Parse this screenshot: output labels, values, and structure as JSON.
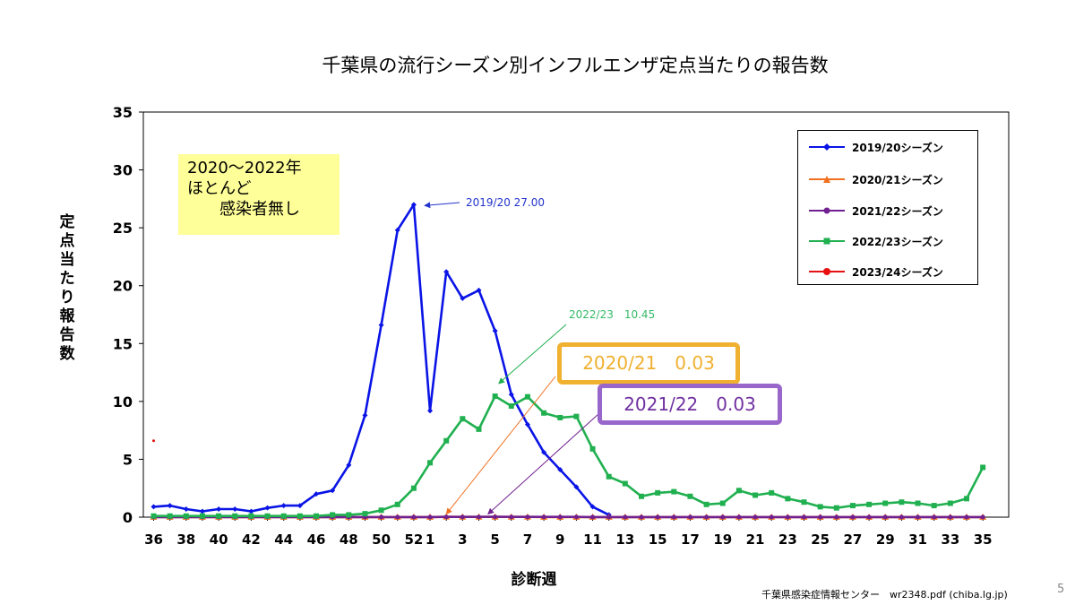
{
  "slide": {
    "source": "千葉県感染症情報センター　wr2348.pdf (chiba.lg.jp)",
    "page_number": "5"
  },
  "note": {
    "lines": [
      "2020〜2022年",
      "ほとんど",
      "　　感染者無し"
    ]
  },
  "callouts": {
    "peak_1920": "2019/20 27.00",
    "peak_2223": "2022/23　10.45",
    "box_2021": "2020/21　0.03",
    "box_2122": "2021/22　0.03"
  },
  "colors": {
    "s1920": "#0a14e6",
    "s2021": "#f07020",
    "s2122": "#702090",
    "s2223": "#20b050",
    "s2324": "#e81010"
  },
  "chart_data": {
    "type": "line",
    "title": "千葉県の流行シーズン別インフルエンザ定点当たりの報告数",
    "xlabel": "診断週",
    "ylabel": "定点当たり報告数",
    "ylim": [
      0,
      35
    ],
    "yticks": [
      0,
      5,
      10,
      15,
      20,
      25,
      30,
      35
    ],
    "categories": [
      36,
      37,
      38,
      39,
      40,
      41,
      42,
      43,
      44,
      45,
      46,
      47,
      48,
      49,
      50,
      51,
      52,
      1,
      2,
      3,
      4,
      5,
      6,
      7,
      8,
      9,
      10,
      11,
      12,
      13,
      14,
      15,
      16,
      17,
      18,
      19,
      20,
      21,
      22,
      23,
      24,
      25,
      26,
      27,
      28,
      29,
      30,
      31,
      32,
      33,
      34,
      35
    ],
    "xtick_labels": [
      "36",
      "38",
      "40",
      "42",
      "44",
      "46",
      "48",
      "50",
      "52",
      "1",
      "3",
      "5",
      "7",
      "9",
      "11",
      "13",
      "15",
      "17",
      "19",
      "21",
      "23",
      "25",
      "27",
      "29",
      "31",
      "33",
      "35"
    ],
    "grid": false,
    "legend_position": "top-right",
    "series": [
      {
        "name": "2019/20シーズン",
        "marker": "diamond",
        "color_key": "s1920",
        "values": [
          0.9,
          1.0,
          0.7,
          0.5,
          0.7,
          0.7,
          0.5,
          0.8,
          1.0,
          1.0,
          2.0,
          2.3,
          4.5,
          8.8,
          16.6,
          24.8,
          27.0,
          9.2,
          21.2,
          18.9,
          19.6,
          16.1,
          10.6,
          8.0,
          5.6,
          4.1,
          2.6,
          0.9,
          0.2,
          null,
          null,
          null,
          null,
          null,
          null,
          null,
          null,
          null,
          null,
          null,
          null,
          null,
          null,
          null,
          null,
          null,
          null,
          null,
          null,
          null,
          null,
          null
        ]
      },
      {
        "name": "2020/21シーズン",
        "marker": "triangle",
        "color_key": "s2021",
        "values": [
          0.01,
          0.01,
          0.01,
          0.01,
          0.01,
          0.01,
          0.01,
          0.01,
          0.01,
          0.01,
          0.01,
          0.01,
          0.01,
          0.01,
          0.01,
          0.01,
          0.01,
          0.01,
          0.03,
          0.02,
          0.02,
          0.02,
          0.02,
          0.02,
          0.01,
          0.01,
          0.01,
          0.01,
          0.01,
          0.01,
          0.01,
          0.01,
          0.01,
          0.01,
          0.01,
          0.01,
          0.01,
          0.01,
          0.01,
          0.01,
          0.01,
          0.01,
          0.01,
          0.01,
          0.01,
          0.01,
          0.01,
          0.01,
          0.01,
          0.01,
          0.01,
          0.01
        ]
      },
      {
        "name": "2021/22シーズン",
        "marker": "circle",
        "color_key": "s2122",
        "values": [
          0.01,
          0.01,
          0.01,
          0.01,
          0.01,
          0.01,
          0.01,
          0.01,
          0.01,
          0.01,
          0.01,
          0.01,
          0.01,
          0.01,
          0.01,
          0.01,
          0.01,
          0.01,
          0.02,
          0.02,
          0.02,
          0.03,
          0.02,
          0.02,
          0.02,
          0.02,
          0.02,
          0.01,
          0.01,
          0.01,
          0.01,
          0.01,
          0.01,
          0.01,
          0.01,
          0.01,
          0.01,
          0.01,
          0.01,
          0.01,
          0.01,
          0.01,
          0.01,
          0.01,
          0.01,
          0.01,
          0.01,
          0.01,
          0.01,
          0.01,
          0.01,
          0.01
        ]
      },
      {
        "name": "2022/23シーズン",
        "marker": "square",
        "color_key": "s2223",
        "values": [
          0.1,
          0.1,
          0.1,
          0.1,
          0.1,
          0.1,
          0.1,
          0.1,
          0.1,
          0.1,
          0.1,
          0.2,
          0.2,
          0.3,
          0.6,
          1.1,
          2.5,
          4.7,
          6.6,
          8.5,
          7.6,
          10.45,
          9.6,
          10.4,
          9.0,
          8.6,
          8.7,
          5.9,
          3.5,
          2.9,
          1.8,
          2.1,
          2.2,
          1.8,
          1.1,
          1.2,
          2.3,
          1.9,
          2.1,
          1.6,
          1.3,
          0.9,
          0.8,
          1.0,
          1.1,
          1.2,
          1.3,
          1.2,
          1.0,
          1.2,
          1.6,
          4.3
        ]
      },
      {
        "name": "2023/24シーズン",
        "marker": "circle",
        "color_key": "s2324",
        "values": [
          6.6,
          null,
          null,
          null,
          null,
          null,
          null,
          null,
          null,
          null,
          null,
          null,
          null,
          null,
          null,
          null,
          null,
          null,
          null,
          null,
          null,
          null,
          null,
          null,
          null,
          null,
          null,
          null,
          null,
          null,
          null,
          null,
          null,
          null,
          null,
          null,
          null,
          null,
          null,
          null,
          null,
          null,
          null,
          null,
          null,
          null,
          null,
          null,
          null,
          null,
          null,
          null
        ]
      }
    ]
  }
}
